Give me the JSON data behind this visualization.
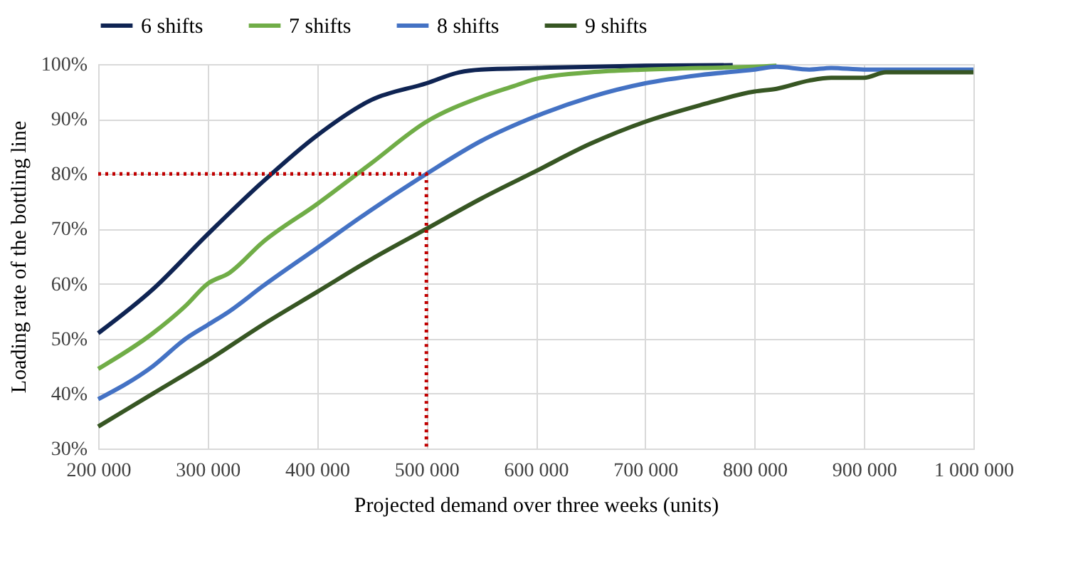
{
  "chart_data": {
    "type": "line",
    "xlabel": "Projected demand over three weeks (units)",
    "ylabel": "Loading rate of the bottling line",
    "legend": "top",
    "grid": true,
    "marker": "none",
    "line_style": "solid",
    "xlim": [
      200000,
      1000000
    ],
    "xticks": [
      {
        "value": 200000,
        "label": "200 000"
      },
      {
        "value": 300000,
        "label": "300 000"
      },
      {
        "value": 400000,
        "label": "400 000"
      },
      {
        "value": 500000,
        "label": "500 000"
      },
      {
        "value": 600000,
        "label": "600 000"
      },
      {
        "value": 700000,
        "label": "700 000"
      },
      {
        "value": 800000,
        "label": "800 000"
      },
      {
        "value": 900000,
        "label": "900 000"
      },
      {
        "value": 1000000,
        "label": "1 000 000"
      }
    ],
    "ylim": [
      30,
      100
    ],
    "yticks": [
      {
        "value": 30,
        "label": "30%"
      },
      {
        "value": 40,
        "label": "40%"
      },
      {
        "value": 50,
        "label": "50%"
      },
      {
        "value": 60,
        "label": "60%"
      },
      {
        "value": 70,
        "label": "70%"
      },
      {
        "value": 80,
        "label": "80%"
      },
      {
        "value": 90,
        "label": "90%"
      },
      {
        "value": 100,
        "label": "100%"
      }
    ],
    "series": [
      {
        "name": "6 shifts",
        "color": "#0f2453",
        "x": [
          200000,
          250000,
          300000,
          350000,
          400000,
          450000,
          500000,
          530000,
          550000,
          600000,
          700000,
          780000
        ],
        "values": [
          51,
          59,
          69,
          78.5,
          87,
          93.5,
          96.5,
          98.5,
          99,
          99.3,
          99.7,
          99.8
        ]
      },
      {
        "name": "7 shifts",
        "color": "#70ad47",
        "x": [
          200000,
          250000,
          280000,
          300000,
          320000,
          350000,
          400000,
          450000,
          500000,
          550000,
          580000,
          600000,
          650000,
          700000,
          750000,
          800000,
          820000
        ],
        "values": [
          44.5,
          51,
          56,
          60,
          62,
          67.5,
          74.5,
          82,
          89.5,
          94,
          96,
          97.3,
          98.5,
          99,
          99.3,
          99.5,
          99.7
        ]
      },
      {
        "name": "8 shifts",
        "color": "#4472c4",
        "x": [
          200000,
          250000,
          280000,
          300000,
          320000,
          350000,
          400000,
          450000,
          500000,
          550000,
          600000,
          650000,
          700000,
          750000,
          800000,
          820000,
          850000,
          870000,
          900000,
          1000000
        ],
        "values": [
          39,
          45,
          50,
          52.5,
          55,
          59.5,
          66.5,
          73.5,
          80,
          86,
          90.5,
          94,
          96.5,
          98,
          99,
          99.5,
          99,
          99.3,
          99,
          99
        ]
      },
      {
        "name": "9 shifts",
        "color": "#375623",
        "x": [
          200000,
          250000,
          300000,
          350000,
          400000,
          450000,
          500000,
          550000,
          600000,
          650000,
          700000,
          750000,
          800000,
          820000,
          850000,
          870000,
          900000,
          920000,
          1000000
        ],
        "values": [
          34,
          40,
          46,
          52.5,
          58.5,
          64.5,
          70,
          75.5,
          80.5,
          85.5,
          89.5,
          92.5,
          95,
          95.5,
          97,
          97.5,
          97.5,
          98.5,
          98.5
        ]
      },
      {
        "color": "#c00000",
        "line_style": "dotted",
        "x": [
          200000,
          500000,
          500000
        ],
        "values": [
          80,
          80,
          30
        ]
      }
    ]
  }
}
